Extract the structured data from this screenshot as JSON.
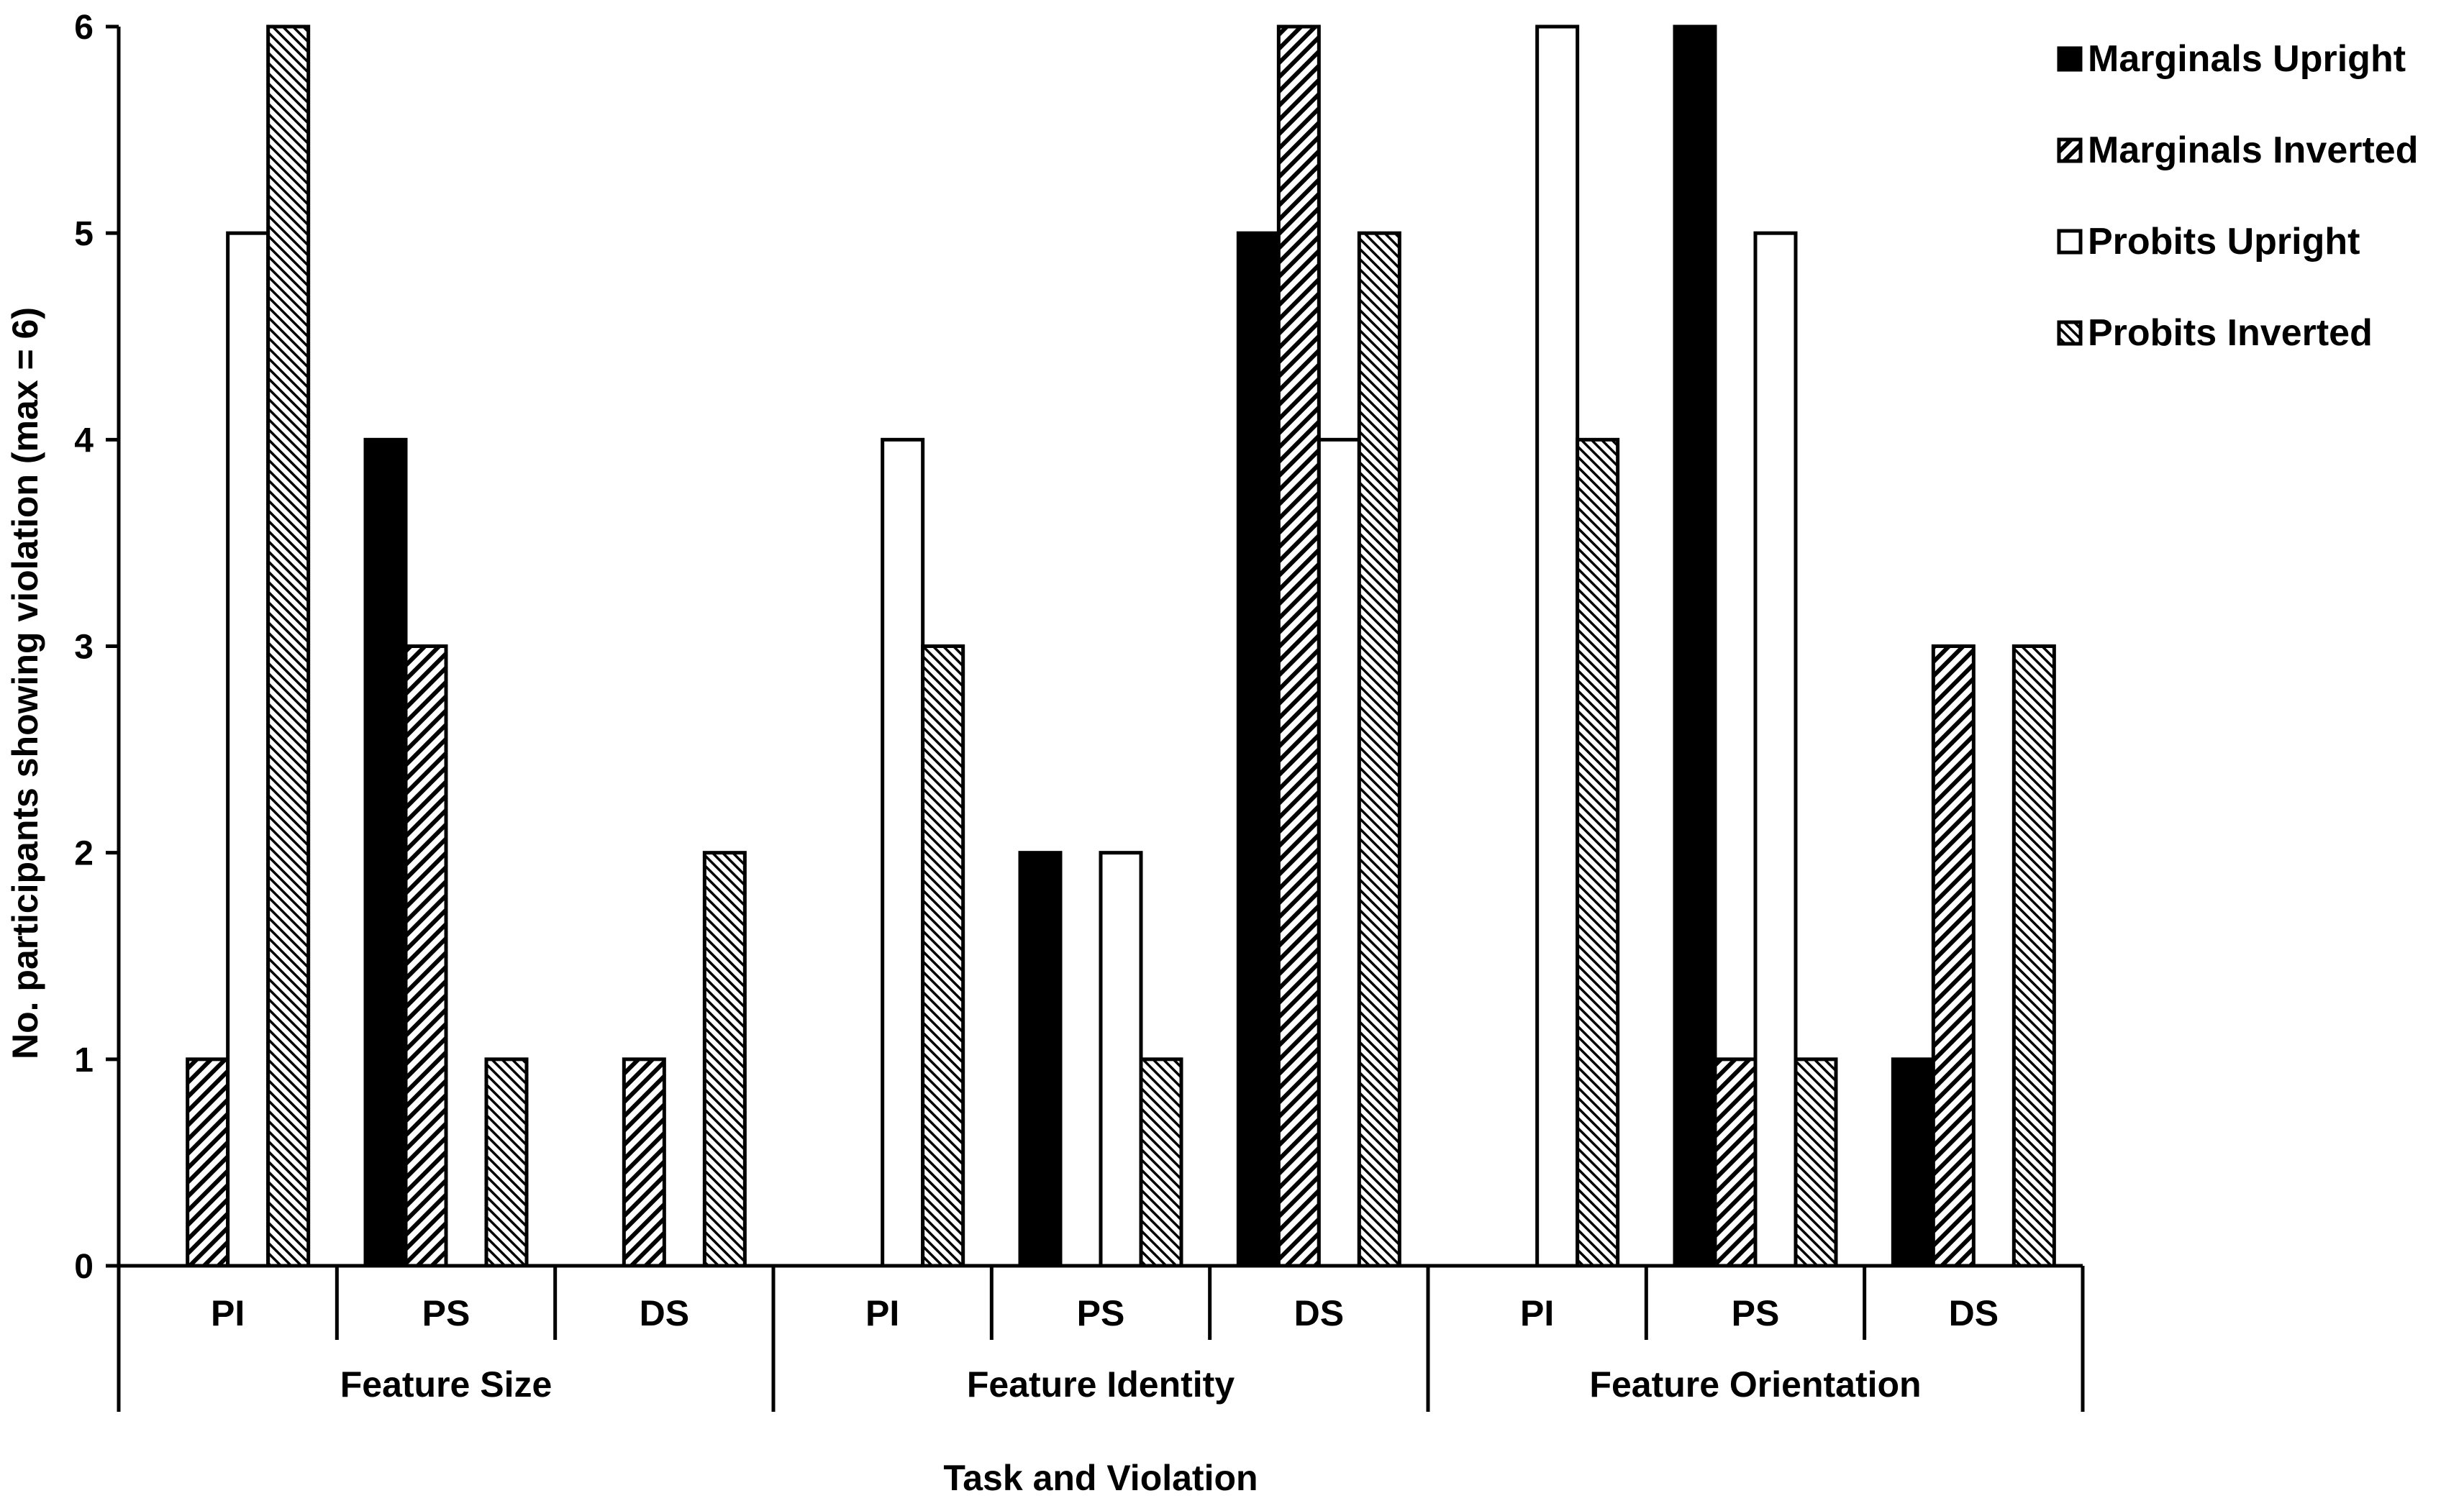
{
  "chart_data": {
    "type": "bar",
    "title": "",
    "xlabel": "Task and Violation",
    "ylabel": "No. participants showing violation (max = 6)",
    "ylim": [
      0,
      6
    ],
    "yticks": [
      "0",
      "1",
      "2",
      "3",
      "4",
      "5",
      "6"
    ],
    "groups": [
      {
        "label": "Feature Size",
        "categories": [
          "PI",
          "PS",
          "DS"
        ]
      },
      {
        "label": "Feature Identity",
        "categories": [
          "PI",
          "PS",
          "DS"
        ]
      },
      {
        "label": "Feature Orientation",
        "categories": [
          "PI",
          "PS",
          "DS"
        ]
      }
    ],
    "series": [
      {
        "name": "Marginals Upright",
        "pattern": "solid",
        "values": [
          0,
          4,
          0,
          0,
          2,
          5,
          0,
          6,
          1
        ]
      },
      {
        "name": "Marginals Inverted",
        "pattern": "hatch-coarse",
        "values": [
          1,
          3,
          1,
          0,
          0,
          6,
          0,
          1,
          3
        ]
      },
      {
        "name": "Probits Upright",
        "pattern": "empty",
        "values": [
          5,
          0,
          0,
          4,
          2,
          4,
          6,
          5,
          0
        ]
      },
      {
        "name": "Probits Inverted",
        "pattern": "hatch-fine",
        "values": [
          6,
          1,
          2,
          3,
          1,
          5,
          4,
          1,
          3
        ]
      }
    ],
    "grid": false,
    "legend_position": "top-right"
  }
}
